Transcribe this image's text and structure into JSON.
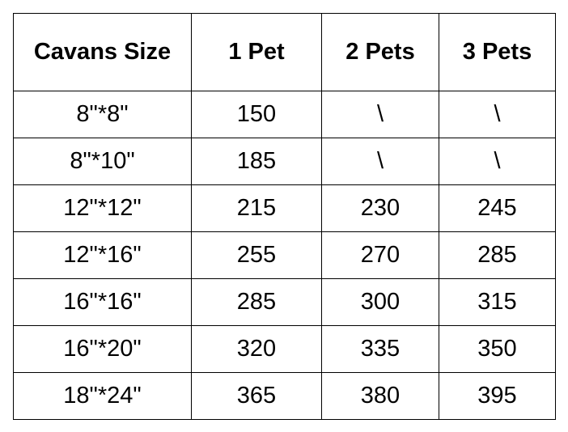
{
  "table": {
    "headers": [
      "Cavans Size",
      "1 Pet",
      "2 Pets",
      "3 Pets"
    ],
    "rows": [
      [
        "8\"*8\"",
        "150",
        "\\",
        "\\"
      ],
      [
        "8\"*10\"",
        "185",
        "\\",
        "\\"
      ],
      [
        "12\"*12\"",
        "215",
        "230",
        "245"
      ],
      [
        "12\"*16\"",
        "255",
        "270",
        "285"
      ],
      [
        "16\"*16\"",
        "285",
        "300",
        "315"
      ],
      [
        "16\"*20\"",
        "320",
        "335",
        "350"
      ],
      [
        "18\"*24\"",
        "365",
        "380",
        "395"
      ]
    ]
  }
}
